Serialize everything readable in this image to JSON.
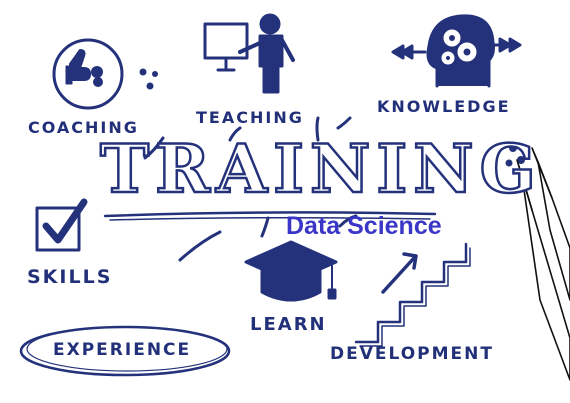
{
  "title": "TRAINING",
  "subtitle": "Data Science",
  "labels": {
    "coaching": "COACHING",
    "teaching": "TEACHING",
    "knowledge": "KNOWLEDGE",
    "skills": "SKILLS",
    "learn": "LEARN",
    "experience": "EXPERIENCE",
    "development": "DEVELOPMENT"
  },
  "colors": {
    "ink": "#24327c",
    "subtitle": "#3a37c8"
  },
  "icons": [
    "thumbs-up-icon",
    "teacher-board-icon",
    "head-gears-icon",
    "checkbox-icon",
    "graduation-cap-icon",
    "stairs-arrow-icon",
    "pencils-icon"
  ]
}
